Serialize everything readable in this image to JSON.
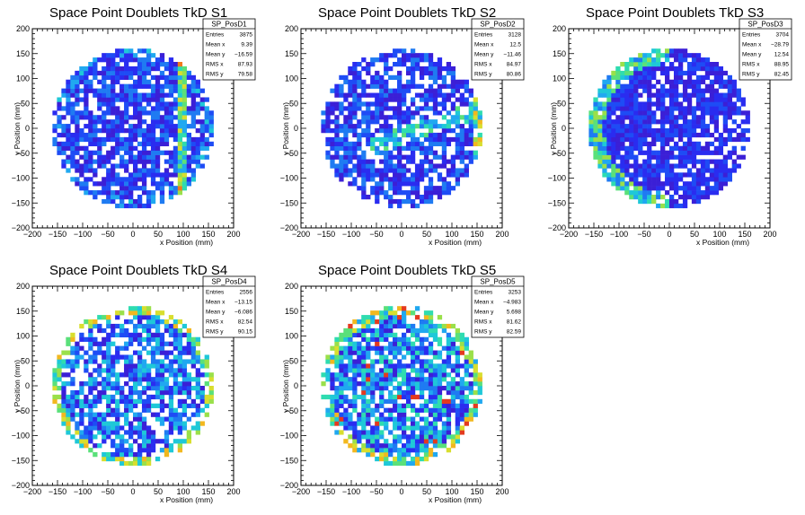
{
  "chart_data": [
    {
      "type": "heatmap",
      "title": "Space Point Doublets TkD S1",
      "xlabel": "x Position (mm)",
      "ylabel": "y Position (mm)",
      "xlim": [
        -200,
        200
      ],
      "ylim": [
        -200,
        200
      ],
      "xticks": [
        "−200",
        "−150",
        "−100",
        "−50",
        "0",
        "50",
        "100",
        "150",
        "200"
      ],
      "yticks": [
        "−200",
        "−150",
        "−100",
        "−50",
        "0",
        "50",
        "100",
        "150",
        "200"
      ],
      "stats": {
        "name": "SP_PosD1",
        "rows": [
          {
            "label": "Entries",
            "value": "3875"
          },
          {
            "label": "Mean x",
            "value": "9.39"
          },
          {
            "label": "Mean y",
            "value": "−16.59"
          },
          {
            "label": "RMS x",
            "value": "87.93"
          },
          {
            "label": "RMS y",
            "value": "79.58"
          }
        ]
      },
      "radius": 160,
      "bins": 36,
      "seed": 11,
      "pattern": "S1"
    },
    {
      "type": "heatmap",
      "title": "Space Point Doublets TkD S2",
      "xlabel": "x Position (mm)",
      "ylabel": "y Position (mm)",
      "xlim": [
        -200,
        200
      ],
      "ylim": [
        -200,
        200
      ],
      "xticks": [
        "−200",
        "−150",
        "−100",
        "−50",
        "0",
        "50",
        "100",
        "150",
        "200"
      ],
      "yticks": [
        "−200",
        "−150",
        "−100",
        "−50",
        "0",
        "50",
        "100",
        "150",
        "200"
      ],
      "stats": {
        "name": "SP_PosD2",
        "rows": [
          {
            "label": "Entries",
            "value": "3128"
          },
          {
            "label": "Mean x",
            "value": "12.5"
          },
          {
            "label": "Mean y",
            "value": "−11.46"
          },
          {
            "label": "RMS x",
            "value": "84.97"
          },
          {
            "label": "RMS y",
            "value": "80.86"
          }
        ]
      },
      "radius": 160,
      "bins": 36,
      "seed": 23,
      "pattern": "S2"
    },
    {
      "type": "heatmap",
      "title": "Space Point Doublets TkD S3",
      "xlabel": "x Position (mm)",
      "ylabel": "y Position (mm)",
      "xlim": [
        -200,
        200
      ],
      "ylim": [
        -200,
        200
      ],
      "xticks": [
        "−200",
        "−150",
        "−100",
        "−50",
        "0",
        "50",
        "100",
        "150",
        "200"
      ],
      "yticks": [
        "−200",
        "−150",
        "−100",
        "−50",
        "0",
        "50",
        "100",
        "150",
        "200"
      ],
      "stats": {
        "name": "SP_PosD3",
        "rows": [
          {
            "label": "Entries",
            "value": "3704"
          },
          {
            "label": "Mean x",
            "value": "−28.79"
          },
          {
            "label": "Mean y",
            "value": "12.54"
          },
          {
            "label": "RMS x",
            "value": "88.95"
          },
          {
            "label": "RMS y",
            "value": "82.45"
          }
        ]
      },
      "radius": 160,
      "bins": 36,
      "seed": 37,
      "pattern": "S3"
    },
    {
      "type": "heatmap",
      "title": "Space Point Doublets TkD S4",
      "xlabel": "x Position (mm)",
      "ylabel": "y Position (mm)",
      "xlim": [
        -200,
        200
      ],
      "ylim": [
        -200,
        200
      ],
      "xticks": [
        "−200",
        "−150",
        "−100",
        "−50",
        "0",
        "50",
        "100",
        "150",
        "200"
      ],
      "yticks": [
        "−200",
        "−150",
        "−100",
        "−50",
        "0",
        "50",
        "100",
        "150",
        "200"
      ],
      "stats": {
        "name": "SP_PosD4",
        "rows": [
          {
            "label": "Entries",
            "value": "2556"
          },
          {
            "label": "Mean x",
            "value": "−13.15"
          },
          {
            "label": "Mean y",
            "value": "−6.086"
          },
          {
            "label": "RMS x",
            "value": "82.54"
          },
          {
            "label": "RMS y",
            "value": "90.15"
          }
        ]
      },
      "radius": 160,
      "bins": 36,
      "seed": 53,
      "pattern": "S4"
    },
    {
      "type": "heatmap",
      "title": "Space Point Doublets TkD S5",
      "xlabel": "x Position (mm)",
      "ylabel": "y Position (mm)",
      "xlim": [
        -200,
        200
      ],
      "ylim": [
        -200,
        200
      ],
      "xticks": [
        "−200",
        "−150",
        "−100",
        "−50",
        "0",
        "50",
        "100",
        "150",
        "200"
      ],
      "yticks": [
        "−200",
        "−150",
        "−100",
        "−50",
        "0",
        "50",
        "100",
        "150",
        "200"
      ],
      "stats": {
        "name": "SP_PosD5",
        "rows": [
          {
            "label": "Entries",
            "value": "3253"
          },
          {
            "label": "Mean x",
            "value": "−4.983"
          },
          {
            "label": "Mean y",
            "value": "5.698"
          },
          {
            "label": "RMS x",
            "value": "81.62"
          },
          {
            "label": "RMS y",
            "value": "82.59"
          }
        ]
      },
      "radius": 160,
      "bins": 36,
      "seed": 71,
      "pattern": "S5"
    }
  ]
}
